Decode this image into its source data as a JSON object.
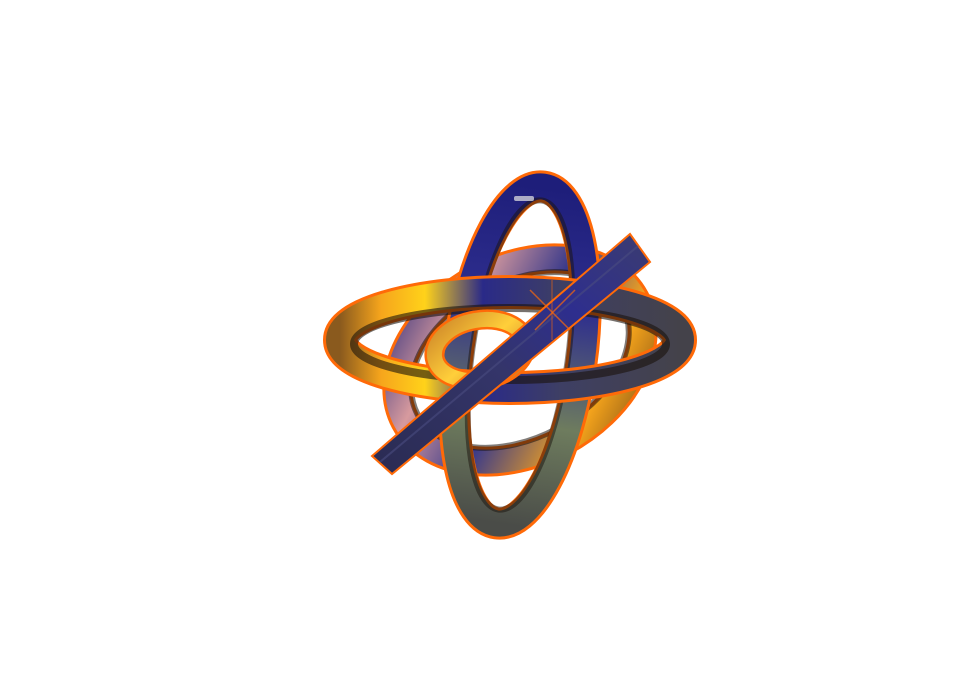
{
  "scene": {
    "subject": "interlocking-ring-sculpture",
    "ring_count": 4,
    "background_color": "#ffffff",
    "colors": {
      "navy": "#24246a",
      "indigo": "#2e2e8e",
      "slate": "#3c3d5a",
      "gold": "#f6a51c",
      "yellow": "#ffd21a",
      "orange_edge": "#ff6a08",
      "pink": "#e0a3a0",
      "sage": "#6e7c5e",
      "shadow": "#1a120c"
    }
  }
}
